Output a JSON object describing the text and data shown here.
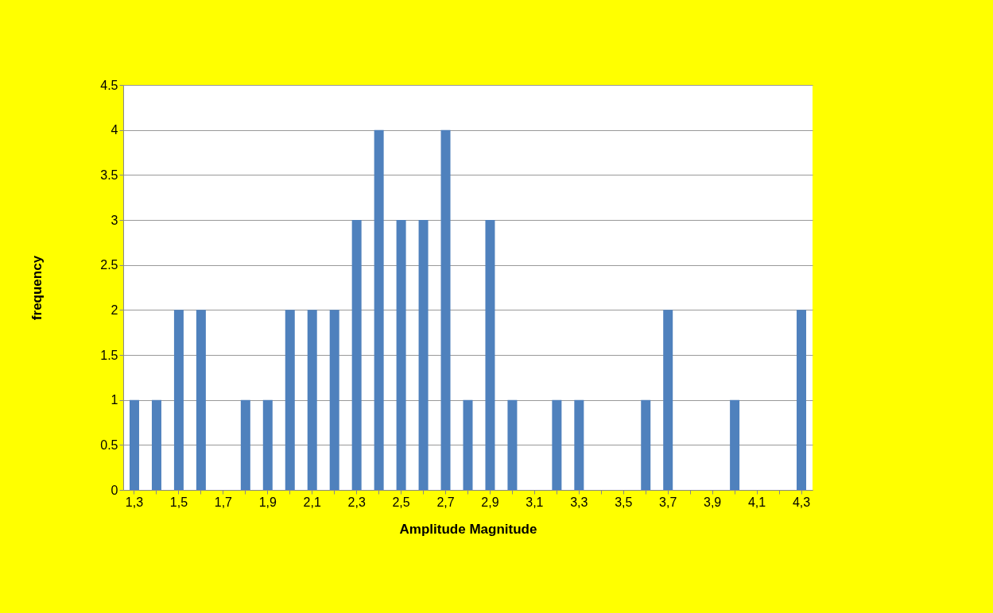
{
  "chart_data": {
    "type": "bar",
    "xlabel": "Amplitude Magnitude",
    "ylabel": "frequency",
    "categories": [
      "1,3",
      null,
      "1,5",
      null,
      "1,7",
      null,
      "1,9",
      null,
      "2,1",
      null,
      "2,3",
      null,
      "2,5",
      null,
      "2,7",
      null,
      "2,9",
      null,
      "3,1",
      null,
      "3,3",
      null,
      "3,5",
      null,
      "3,7",
      null,
      "3,9",
      null,
      "4,1",
      null,
      "4,3"
    ],
    "values": [
      1,
      1,
      2,
      2,
      0,
      1,
      1,
      2,
      2,
      2,
      3,
      4,
      3,
      3,
      4,
      1,
      3,
      1,
      0,
      1,
      1,
      0,
      0,
      1,
      2,
      0,
      0,
      1,
      0,
      0,
      2
    ],
    "color": "#4f81bd",
    "ylim": [
      0,
      4.5
    ],
    "yticks": [
      0,
      0.5,
      1,
      1.5,
      2,
      2.5,
      3,
      3.5,
      4,
      4.5
    ],
    "grid": "y"
  }
}
